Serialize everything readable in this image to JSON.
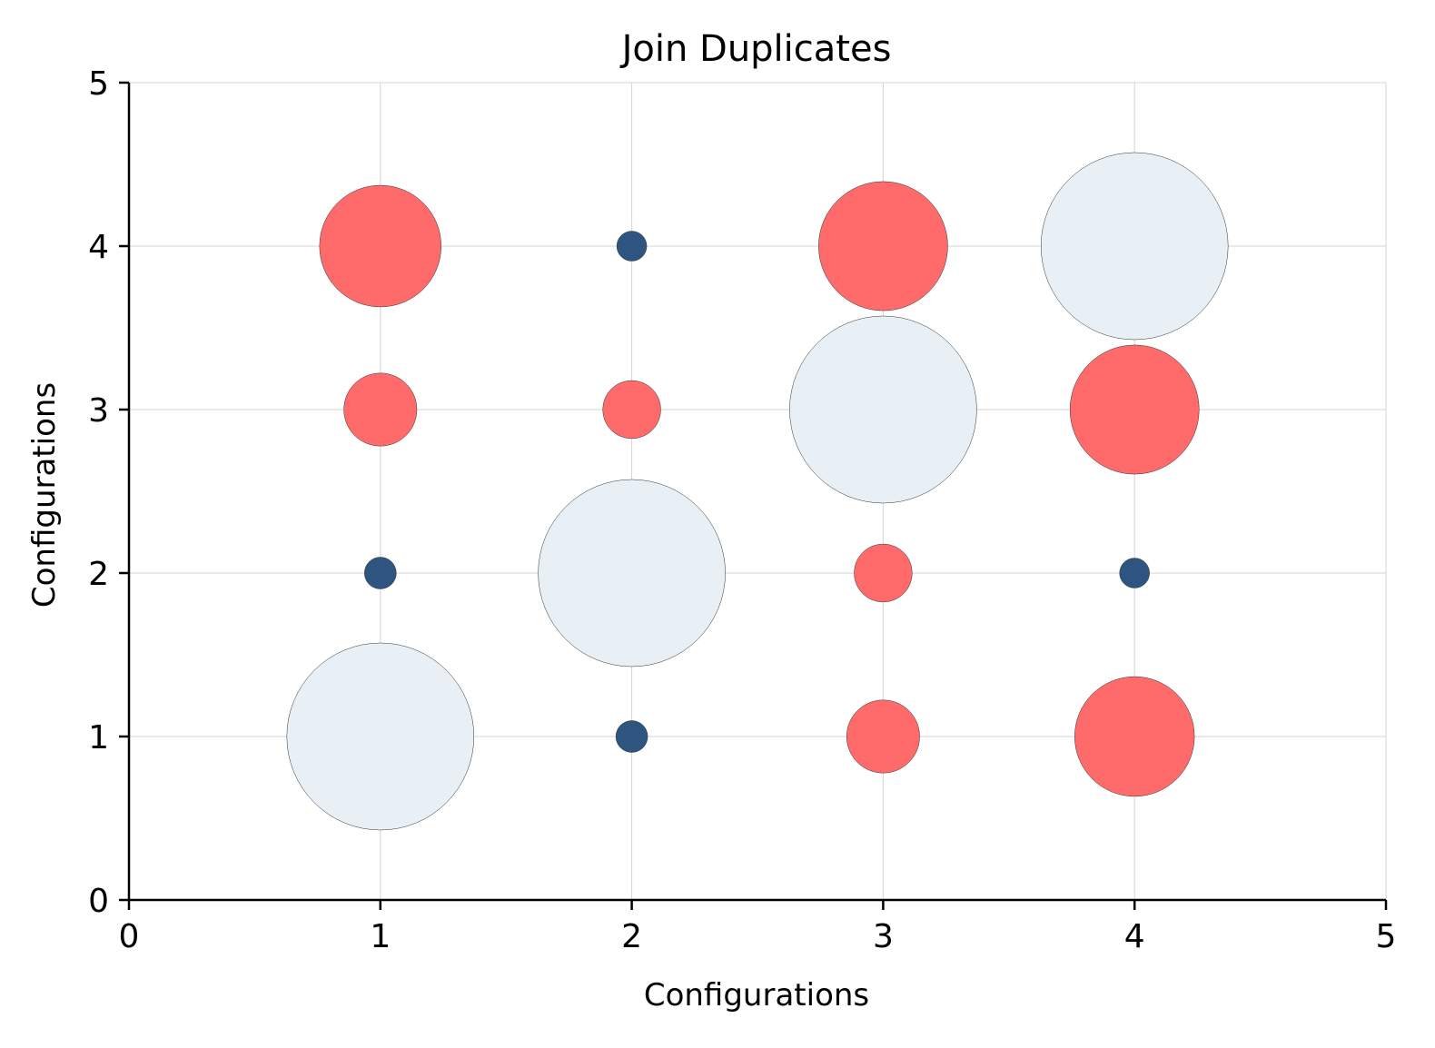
{
  "chart_data": {
    "type": "scatter",
    "title": "Join Duplicates",
    "xlabel": "Configurations",
    "ylabel": "Configurations",
    "xlim": [
      0,
      5
    ],
    "ylim": [
      0,
      5
    ],
    "xticks": [
      "0",
      "1",
      "2",
      "3",
      "4",
      "5"
    ],
    "yticks": [
      "0",
      "1",
      "2",
      "3",
      "4",
      "5"
    ],
    "grid": true,
    "colors": {
      "large": "#e8eff5",
      "medium": "#ff6b6b",
      "small": "#2e5580"
    },
    "points": [
      {
        "x": 1,
        "y": 1,
        "size": 1.0,
        "group": "large"
      },
      {
        "x": 1,
        "y": 2,
        "size": 0.17,
        "group": "small"
      },
      {
        "x": 1,
        "y": 3,
        "size": 0.39,
        "group": "medium"
      },
      {
        "x": 1,
        "y": 4,
        "size": 0.65,
        "group": "medium"
      },
      {
        "x": 2,
        "y": 1,
        "size": 0.17,
        "group": "small"
      },
      {
        "x": 2,
        "y": 2,
        "size": 1.0,
        "group": "large"
      },
      {
        "x": 2,
        "y": 3,
        "size": 0.31,
        "group": "medium"
      },
      {
        "x": 2,
        "y": 4,
        "size": 0.16,
        "group": "small"
      },
      {
        "x": 3,
        "y": 1,
        "size": 0.39,
        "group": "medium"
      },
      {
        "x": 3,
        "y": 2,
        "size": 0.31,
        "group": "medium"
      },
      {
        "x": 3,
        "y": 3,
        "size": 1.0,
        "group": "large"
      },
      {
        "x": 3,
        "y": 4,
        "size": 0.69,
        "group": "medium"
      },
      {
        "x": 4,
        "y": 1,
        "size": 0.64,
        "group": "medium"
      },
      {
        "x": 4,
        "y": 2,
        "size": 0.16,
        "group": "small"
      },
      {
        "x": 4,
        "y": 3,
        "size": 0.69,
        "group": "medium"
      },
      {
        "x": 4,
        "y": 4,
        "size": 1.0,
        "group": "large"
      }
    ]
  }
}
